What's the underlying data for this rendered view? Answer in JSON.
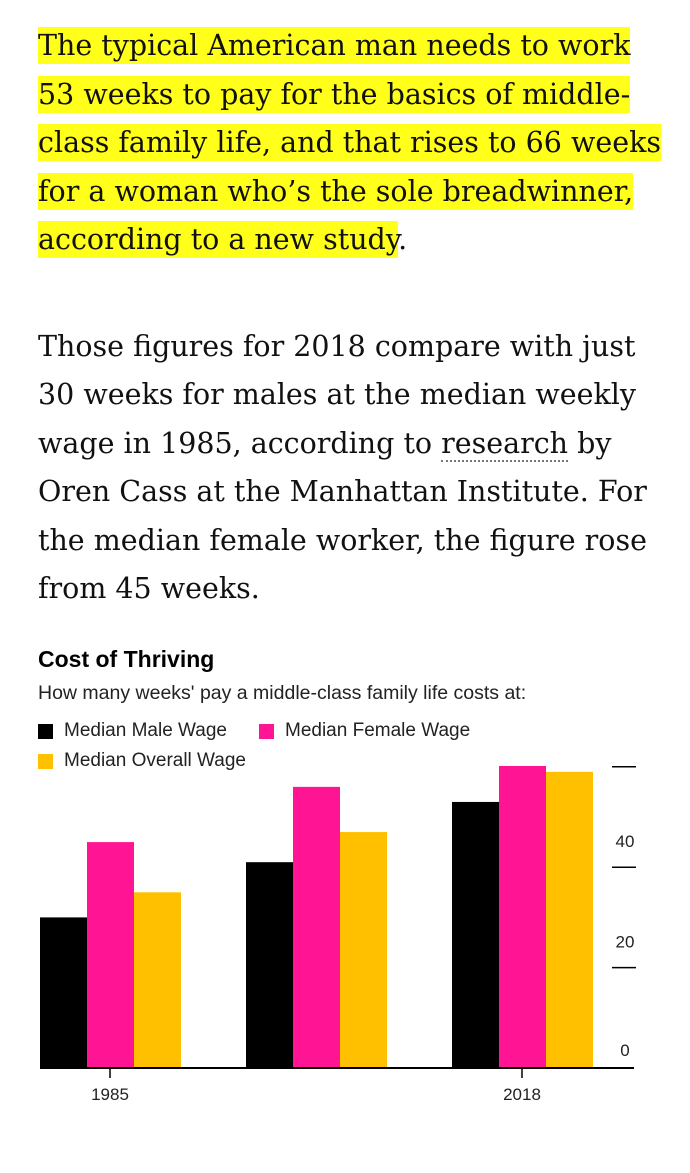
{
  "article": {
    "lead_highlighted": "The typical American man needs to work 53 weeks to pay for the basics of middle-class family life, and that rises to 66 weeks for a woman who’s the sole breadwinner, according to a new study",
    "lead_period": ".",
    "body_before_link": "Those figures for 2018 compare with just 30 weeks for males at the median weekly wage in 1985, according to ",
    "body_link": "research",
    "body_after_link": " by Oren Cass at the Manhattan Institute. For the median female worker, the figure rose from 45 weeks."
  },
  "chart_data": {
    "type": "bar",
    "title": "Cost of Thriving",
    "subtitle": "How many weeks' pay a middle-class family life costs at:",
    "categories": [
      "1985",
      "",
      "2018"
    ],
    "series": [
      {
        "name": "Median Male Wage",
        "color": "#000000",
        "values": [
          30,
          41,
          53
        ]
      },
      {
        "name": "Median Female Wage",
        "color": "#ff1493",
        "values": [
          45,
          56,
          66
        ]
      },
      {
        "name": "Median Overall Wage",
        "color": "#ffc000",
        "values": [
          35,
          47,
          59
        ]
      }
    ],
    "ylim": [
      0,
      66
    ],
    "yticks": [
      "0",
      "20",
      "40",
      "60"
    ],
    "ytick_values": [
      0,
      20,
      40,
      60
    ],
    "xlabel": "",
    "ylabel": "",
    "legend_position": "top-left",
    "y_axis_side": "right"
  }
}
